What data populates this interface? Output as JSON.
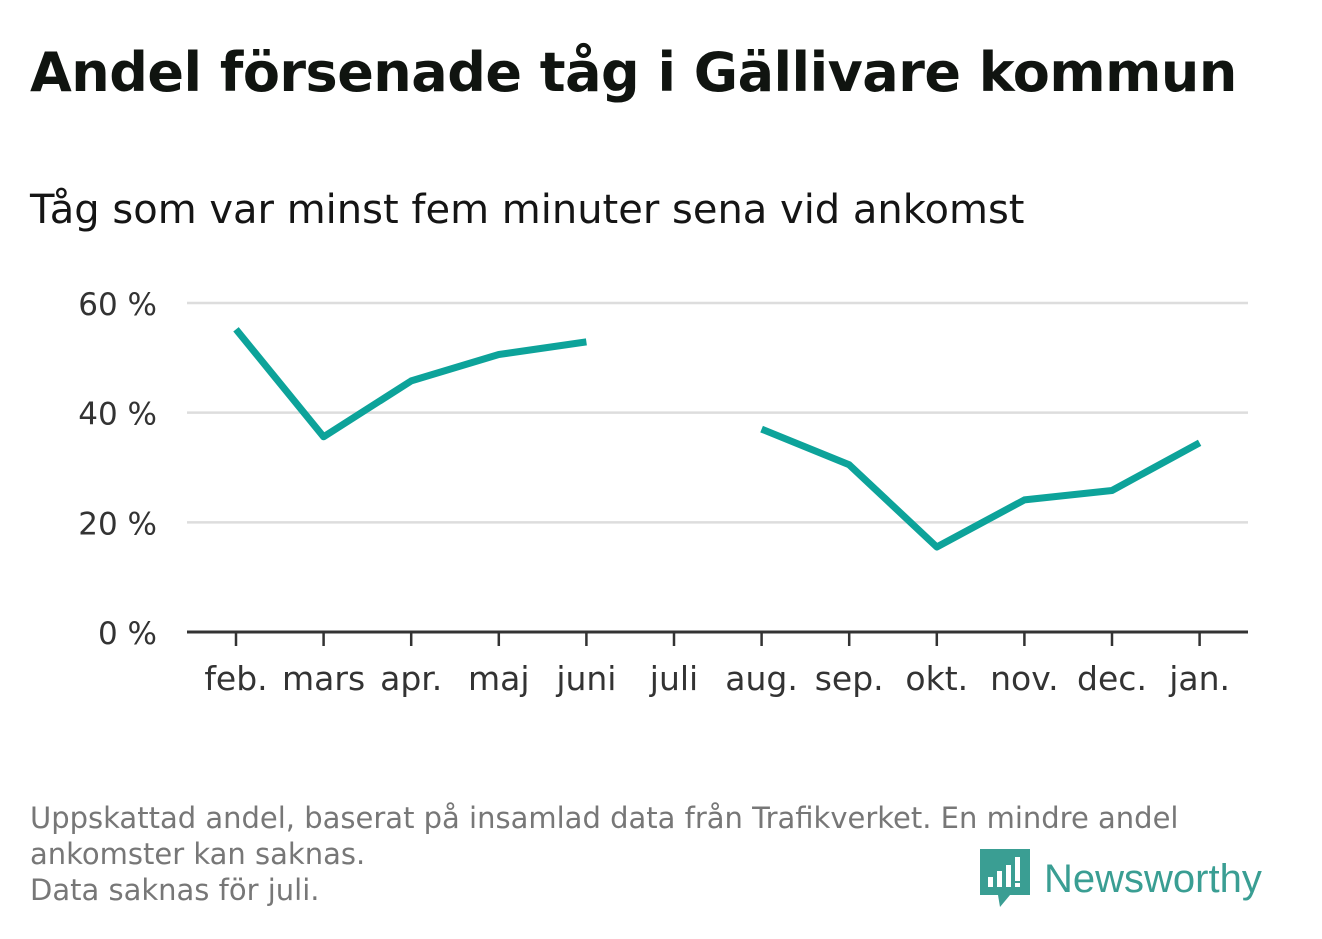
{
  "title": "Andel försenade tåg i Gällivare kommun",
  "subtitle": "Tåg som var minst fem minuter sena vid ankomst",
  "chart_data": {
    "type": "line",
    "title": "Andel försenade tåg i Gällivare kommun",
    "subtitle": "Tåg som var minst fem minuter sena vid ankomst",
    "categories": [
      "feb.",
      "mars",
      "apr.",
      "maj",
      "juni",
      "juli",
      "aug.",
      "sep.",
      "okt.",
      "nov.",
      "dec.",
      "jan."
    ],
    "series": [
      {
        "values": [
          55.2,
          35.6,
          45.8,
          50.6,
          52.9,
          null,
          37.0,
          30.5,
          15.5,
          24.1,
          25.8,
          34.5
        ]
      }
    ],
    "yticks": [
      0,
      20,
      40,
      60
    ],
    "ytick_labels": [
      "0 %",
      "20 %",
      "40 %",
      "60 %"
    ],
    "ylim": [
      0,
      60
    ],
    "grid": true,
    "line_color": "#0da39a"
  },
  "footnote": {
    "lines": [
      "Uppskattad andel, baserat på insamlad data från Trafikverket. En mindre andel",
      "ankomster kan saknas.",
      "Data saknas för juli."
    ]
  },
  "brand": {
    "name": "Newsworthy",
    "logo_icon": "bar-chart-speech-bubble-icon",
    "color": "#3a9e93"
  }
}
